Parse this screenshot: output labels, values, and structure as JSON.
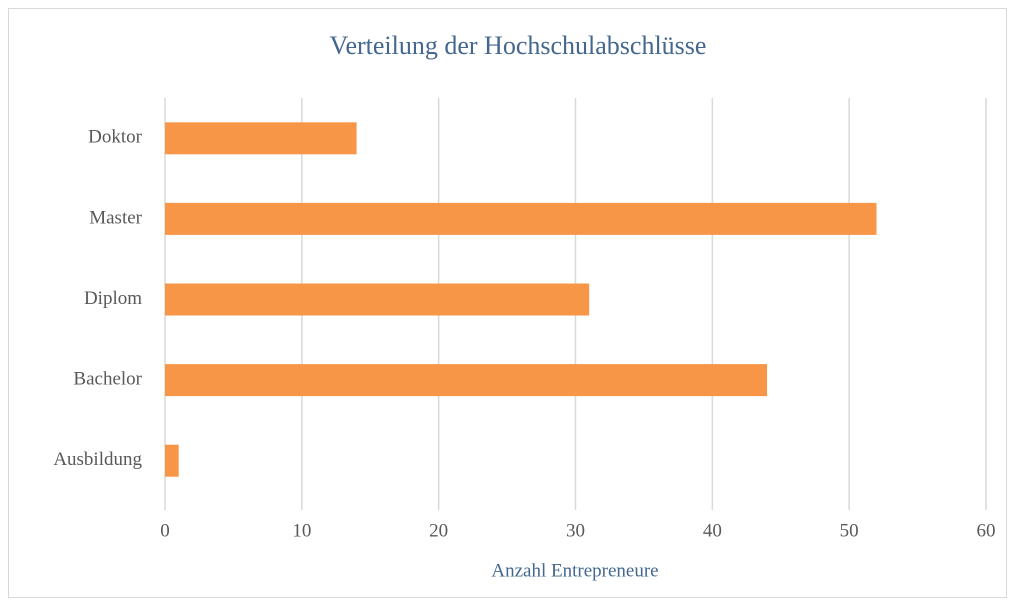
{
  "chart_data": {
    "type": "bar",
    "orientation": "horizontal",
    "title": "Verteilung der Hochschulabschlüsse",
    "x_label": "Anzahl Entrepreneure",
    "categories": [
      "Doktor",
      "Master",
      "Diplom",
      "Bachelor",
      "Ausbildung"
    ],
    "values": [
      14,
      52,
      31,
      44,
      1
    ],
    "color": "#f79646",
    "xlim": [
      0,
      60
    ],
    "xticks": [
      0,
      10,
      20,
      30,
      40,
      50,
      60
    ],
    "grid": true
  }
}
